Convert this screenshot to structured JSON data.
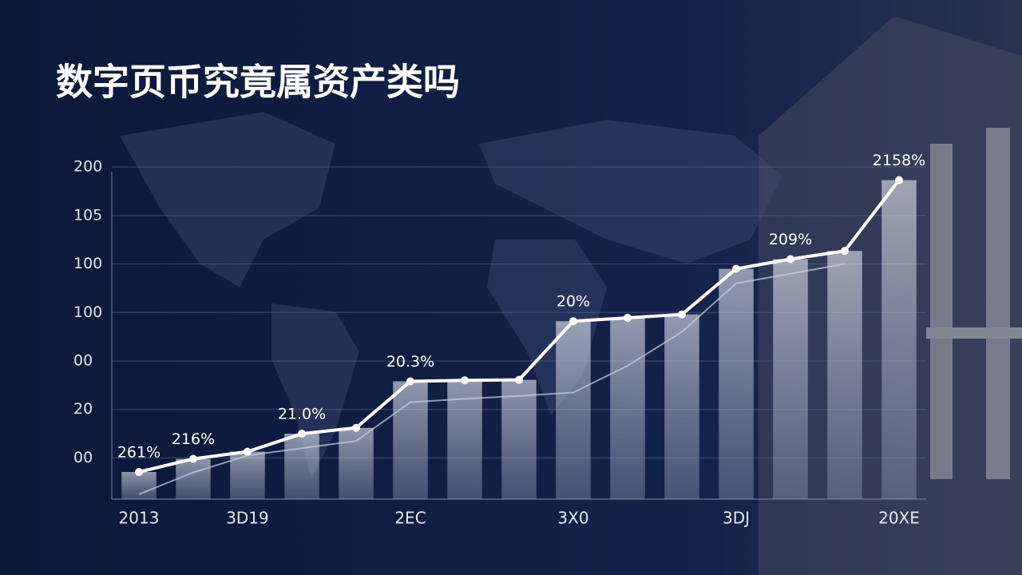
{
  "chart_data": {
    "type": "line",
    "title": "数字页币究竟属资产类吗",
    "categories": [
      "2013",
      null,
      "3D19",
      null,
      null,
      "2EC",
      null,
      null,
      "3X0",
      null,
      null,
      "3DJ",
      null,
      null,
      "20XE"
    ],
    "series": [
      {
        "color": "#ffffff",
        "values": [
          -0.29,
          -0.02,
          0.13,
          0.5,
          0.62,
          1.58,
          1.6,
          1.61,
          2.82,
          2.89,
          2.96,
          3.9,
          4.1,
          4.27,
          5.73
        ]
      },
      {
        "color": "#c8d0e0",
        "values": [
          -0.75,
          -0.3,
          0.05,
          0.2,
          0.35,
          1.15,
          1.22,
          1.28,
          1.35,
          1.9,
          2.6,
          3.6,
          3.8,
          4.0,
          null
        ]
      }
    ],
    "annotations": [
      "261%",
      "216%",
      "21.0%",
      "20.3%",
      "20%",
      "209%",
      "2158%"
    ],
    "ylim": [
      -0.85,
      6.2
    ],
    "yticks": [
      {
        "value": 6,
        "label": "200"
      },
      {
        "value": 5,
        "label": "105"
      },
      {
        "value": 4,
        "label": "100"
      },
      {
        "value": 3,
        "label": "100"
      },
      {
        "value": 2,
        "label": "00"
      },
      {
        "value": 1,
        "label": "20"
      },
      {
        "value": 0,
        "label": "00"
      }
    ],
    "grid": true
  }
}
